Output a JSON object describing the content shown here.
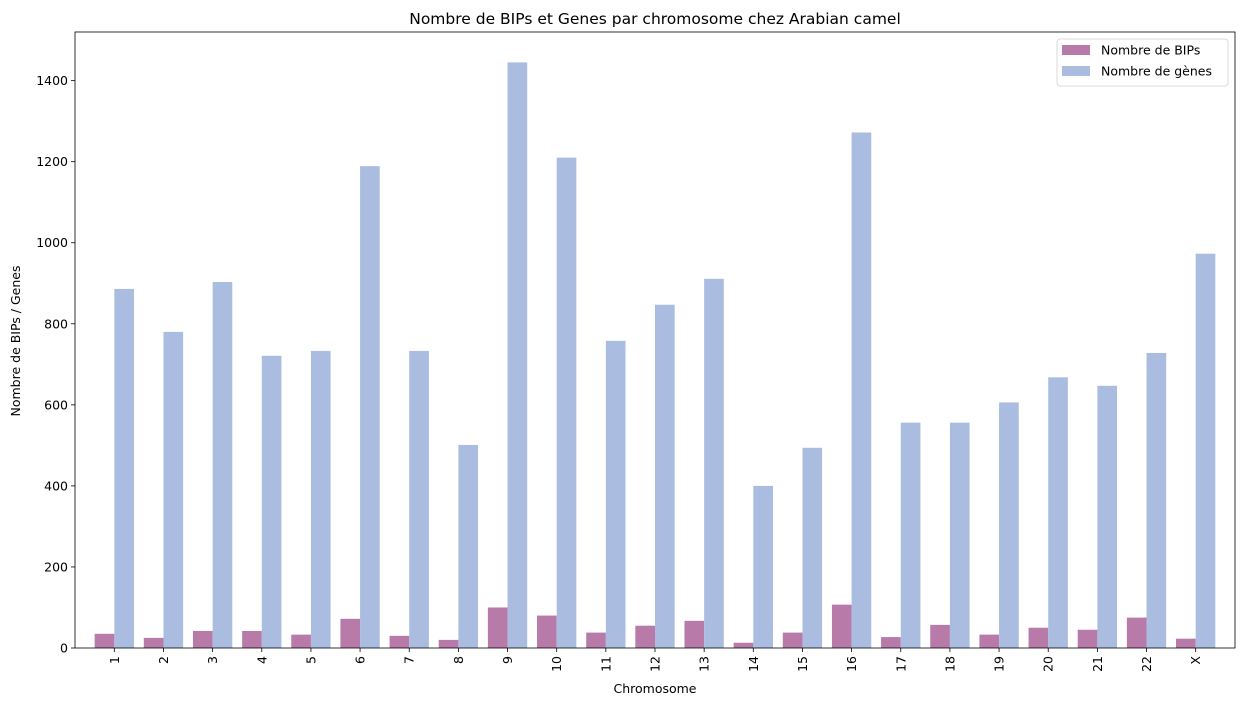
{
  "chart_data": {
    "type": "bar",
    "title": "Nombre de BIPs et Genes par chromosome chez Arabian camel",
    "xlabel": "Chromosome",
    "ylabel": "Nombre de BIPs / Genes",
    "categories": [
      "1",
      "2",
      "3",
      "4",
      "5",
      "6",
      "7",
      "8",
      "9",
      "10",
      "11",
      "12",
      "13",
      "14",
      "15",
      "16",
      "17",
      "18",
      "19",
      "20",
      "21",
      "22",
      "X"
    ],
    "ylim": [
      0,
      1520
    ],
    "yticks": [
      0,
      200,
      400,
      600,
      800,
      1000,
      1200,
      1400
    ],
    "series": [
      {
        "name": "Nombre de BIPs",
        "color": "#b87aa8",
        "values": [
          35,
          25,
          42,
          42,
          33,
          72,
          30,
          20,
          100,
          80,
          38,
          55,
          67,
          13,
          38,
          107,
          27,
          57,
          33,
          50,
          45,
          75,
          23
        ]
      },
      {
        "name": "Nombre de gènes",
        "color": "#aabde0",
        "values": [
          886,
          780,
          903,
          721,
          733,
          1189,
          733,
          501,
          1445,
          1210,
          758,
          847,
          911,
          400,
          494,
          1272,
          556,
          556,
          606,
          668,
          647,
          728,
          973
        ]
      }
    ],
    "legend_position": "top-right",
    "grid": false
  }
}
